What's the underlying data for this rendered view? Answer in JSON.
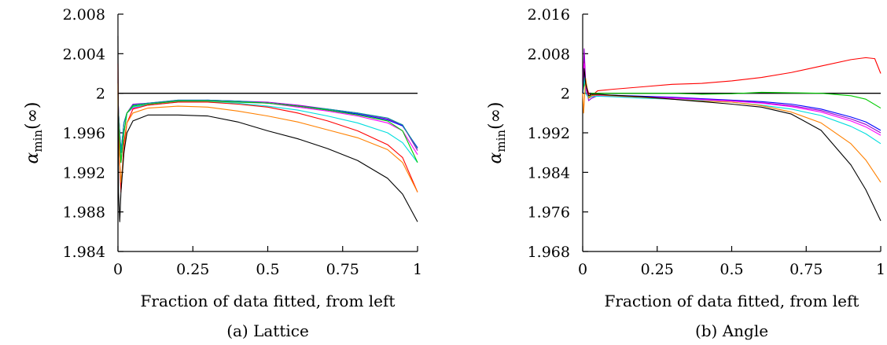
{
  "chart_data": [
    {
      "type": "line",
      "caption": "(a) Lattice",
      "xlabel": "Fraction of data fitted, from left",
      "ylabel": "α_min(∞)",
      "ylabel_main": "α",
      "ylabel_sub": "min",
      "ylabel_suffix": "(∞)",
      "xlim": [
        0,
        1
      ],
      "ylim": [
        1.984,
        2.008
      ],
      "xticks": [
        0,
        0.25,
        0.5,
        0.75,
        1
      ],
      "xtick_labels": [
        "0",
        "0.25",
        "0.5",
        "0.75",
        "1"
      ],
      "yticks": [
        1.984,
        1.988,
        1.992,
        1.996,
        2.0,
        2.004,
        2.008
      ],
      "ytick_labels": [
        "1.984",
        "1.988",
        "1.992",
        "1.996",
        "2",
        "2.004",
        "2.008"
      ],
      "reference_line": 2.0,
      "series": [
        {
          "color": "#0000ff",
          "x": [
            0,
            0.002,
            0.01,
            0.02,
            0.03,
            0.05,
            0.1,
            0.2,
            0.3,
            0.4,
            0.5,
            0.6,
            0.7,
            0.8,
            0.9,
            0.95,
            1.0
          ],
          "y": [
            2.0,
            1.998,
            1.994,
            1.997,
            1.998,
            1.9988,
            1.999,
            1.9992,
            1.9993,
            1.9992,
            1.999,
            1.9987,
            1.9983,
            1.9979,
            1.9973,
            1.9967,
            1.9945
          ]
        },
        {
          "color": "#9900cc",
          "x": [
            0,
            0.002,
            0.01,
            0.02,
            0.03,
            0.05,
            0.1,
            0.2,
            0.3,
            0.4,
            0.5,
            0.6,
            0.7,
            0.8,
            0.9,
            0.95,
            1.0
          ],
          "y": [
            2.0,
            1.998,
            1.994,
            1.997,
            1.998,
            1.9989,
            1.999,
            1.9993,
            1.9993,
            1.9992,
            1.9991,
            1.9988,
            1.9984,
            1.998,
            1.9974,
            1.9968,
            1.9942
          ]
        },
        {
          "color": "#ff00ff",
          "x": [
            0,
            0.002,
            0.01,
            0.02,
            0.03,
            0.05,
            0.1,
            0.2,
            0.3,
            0.4,
            0.5,
            0.6,
            0.7,
            0.8,
            0.9,
            0.95,
            1.0
          ],
          "y": [
            2.0,
            1.997,
            1.993,
            1.996,
            1.998,
            1.9985,
            1.9989,
            1.9992,
            1.9992,
            1.9991,
            1.999,
            1.9986,
            1.9982,
            1.9977,
            1.997,
            1.9962,
            1.9938
          ]
        },
        {
          "color": "#009999",
          "x": [
            0,
            0.002,
            0.01,
            0.02,
            0.03,
            0.05,
            0.1,
            0.2,
            0.3,
            0.4,
            0.5,
            0.6,
            0.7,
            0.8,
            0.9,
            0.95,
            1.0
          ],
          "y": [
            2.0,
            1.998,
            1.994,
            1.997,
            1.998,
            1.9988,
            1.999,
            1.9993,
            1.9993,
            1.9992,
            1.999,
            1.9987,
            1.9984,
            1.998,
            1.9975,
            1.9968,
            1.9944
          ]
        },
        {
          "color": "#00dddd",
          "x": [
            0,
            0.002,
            0.01,
            0.02,
            0.03,
            0.05,
            0.1,
            0.2,
            0.3,
            0.4,
            0.5,
            0.6,
            0.7,
            0.8,
            0.9,
            0.95,
            1.0
          ],
          "y": [
            2.0,
            1.997,
            1.993,
            1.996,
            1.998,
            1.9986,
            1.9988,
            1.9991,
            1.9991,
            1.999,
            1.9987,
            1.9983,
            1.9977,
            1.997,
            1.996,
            1.995,
            1.993
          ]
        },
        {
          "color": "#00cc00",
          "x": [
            0,
            0.002,
            0.01,
            0.02,
            0.03,
            0.05,
            0.1,
            0.2,
            0.3,
            0.4,
            0.5,
            0.6,
            0.7,
            0.8,
            0.9,
            0.95,
            1.0
          ],
          "y": [
            2.0,
            1.997,
            1.993,
            1.996,
            1.998,
            1.9987,
            1.9989,
            1.9992,
            1.9992,
            1.9991,
            1.999,
            1.9987,
            1.9983,
            1.9978,
            1.9972,
            1.9962,
            1.993
          ]
        },
        {
          "color": "#ff0000",
          "x": [
            0,
            0.002,
            0.01,
            0.02,
            0.03,
            0.05,
            0.1,
            0.2,
            0.3,
            0.4,
            0.5,
            0.6,
            0.7,
            0.8,
            0.9,
            0.95,
            1.0
          ],
          "y": [
            2.003,
            1.996,
            1.99,
            1.995,
            1.997,
            1.9984,
            1.9988,
            1.9991,
            1.9991,
            1.9989,
            1.9986,
            1.998,
            1.9972,
            1.9962,
            1.9948,
            1.9935,
            1.99
          ]
        },
        {
          "color": "#ff8000",
          "x": [
            0,
            0.002,
            0.01,
            0.02,
            0.03,
            0.05,
            0.1,
            0.2,
            0.3,
            0.4,
            0.5,
            0.6,
            0.7,
            0.8,
            0.9,
            0.95,
            1.0
          ],
          "y": [
            2.001,
            1.995,
            1.991,
            1.994,
            1.997,
            1.998,
            1.9985,
            1.9987,
            1.9986,
            1.9982,
            1.9977,
            1.9971,
            1.9963,
            1.9955,
            1.9943,
            1.993,
            1.99
          ]
        },
        {
          "color": "#000000",
          "x": [
            0,
            0.002,
            0.006,
            0.01,
            0.02,
            0.03,
            0.05,
            0.1,
            0.2,
            0.3,
            0.4,
            0.5,
            0.6,
            0.7,
            0.8,
            0.9,
            0.95,
            1.0
          ],
          "y": [
            2.0058,
            1.99,
            1.987,
            1.99,
            1.994,
            1.996,
            1.9972,
            1.9978,
            1.9978,
            1.9977,
            1.9971,
            1.9962,
            1.9954,
            1.9944,
            1.9932,
            1.9914,
            1.9898,
            1.987
          ]
        }
      ]
    },
    {
      "type": "line",
      "caption": "(b) Angle",
      "xlabel": "Fraction of data fitted, from left",
      "ylabel": "α_min(∞)",
      "ylabel_main": "α",
      "ylabel_sub": "min",
      "ylabel_suffix": "(∞)",
      "xlim": [
        0,
        1
      ],
      "ylim": [
        1.968,
        2.016
      ],
      "xticks": [
        0,
        0.25,
        0.5,
        0.75,
        1
      ],
      "xtick_labels": [
        "0",
        "0.25",
        "0.5",
        "0.75",
        "1"
      ],
      "yticks": [
        1.968,
        1.976,
        1.984,
        1.992,
        2.0,
        2.008,
        2.016
      ],
      "ytick_labels": [
        "1.968",
        "1.976",
        "1.984",
        "1.992",
        "2",
        "2.008",
        "2.016"
      ],
      "reference_line": 2.0,
      "series": [
        {
          "color": "#ff0000",
          "x": [
            0,
            0.005,
            0.01,
            0.02,
            0.03,
            0.05,
            0.1,
            0.2,
            0.3,
            0.4,
            0.5,
            0.6,
            0.7,
            0.8,
            0.9,
            0.95,
            0.98,
            1.0
          ],
          "y": [
            2.0,
            2.008,
            2.002,
            2.0,
            1.9995,
            2.0005,
            2.0008,
            2.0013,
            2.0018,
            2.002,
            2.0025,
            2.0032,
            2.0042,
            2.0055,
            2.0068,
            2.0072,
            2.007,
            2.004
          ]
        },
        {
          "color": "#00cc00",
          "x": [
            0,
            0.005,
            0.01,
            0.02,
            0.03,
            0.05,
            0.1,
            0.2,
            0.3,
            0.4,
            0.5,
            0.6,
            0.7,
            0.8,
            0.9,
            0.95,
            1.0
          ],
          "y": [
            2.0,
            2.002,
            2.001,
            1.999,
            2.0,
            2.0,
            2.0,
            2.0,
            2.0,
            1.9998,
            1.9999,
            2.0002,
            2.0001,
            2.0,
            1.9995,
            1.9988,
            1.997
          ]
        },
        {
          "color": "#0000ff",
          "x": [
            0,
            0.005,
            0.01,
            0.02,
            0.03,
            0.05,
            0.1,
            0.2,
            0.3,
            0.4,
            0.5,
            0.6,
            0.7,
            0.8,
            0.9,
            0.95,
            1.0
          ],
          "y": [
            2.0,
            2.005,
            2.001,
            1.999,
            1.9995,
            1.9997,
            1.9996,
            1.9994,
            1.9992,
            1.9989,
            1.9986,
            1.9983,
            1.9978,
            1.9968,
            1.9952,
            1.9942,
            1.9925
          ]
        },
        {
          "color": "#9900cc",
          "x": [
            0,
            0.005,
            0.01,
            0.02,
            0.03,
            0.05,
            0.1,
            0.2,
            0.3,
            0.4,
            0.5,
            0.6,
            0.7,
            0.8,
            0.9,
            0.95,
            1.0
          ],
          "y": [
            2.0,
            2.009,
            2.002,
            1.9985,
            1.999,
            1.9995,
            1.9994,
            1.9993,
            1.9991,
            1.9988,
            1.9985,
            1.9981,
            1.9975,
            1.9965,
            1.9948,
            1.9937,
            1.992
          ]
        },
        {
          "color": "#ff00ff",
          "x": [
            0,
            0.005,
            0.01,
            0.02,
            0.03,
            0.05,
            0.1,
            0.2,
            0.3,
            0.4,
            0.5,
            0.6,
            0.7,
            0.8,
            0.9,
            0.95,
            1.0
          ],
          "y": [
            2.0,
            2.006,
            2.001,
            1.999,
            1.9993,
            1.9995,
            1.9994,
            1.9992,
            1.999,
            1.9987,
            1.9984,
            1.998,
            1.9973,
            1.9962,
            1.9944,
            1.9932,
            1.9915
          ]
        },
        {
          "color": "#00dddd",
          "x": [
            0,
            0.005,
            0.01,
            0.02,
            0.03,
            0.05,
            0.1,
            0.2,
            0.3,
            0.4,
            0.5,
            0.6,
            0.7,
            0.8,
            0.9,
            0.95,
            1.0
          ],
          "y": [
            2.0,
            2.003,
            2.0,
            1.999,
            1.9993,
            1.9994,
            1.9993,
            1.999,
            1.9988,
            1.9985,
            1.9982,
            1.9976,
            1.9968,
            1.9955,
            1.9933,
            1.9918,
            1.9898
          ]
        },
        {
          "color": "#ff8000",
          "x": [
            0,
            0.003,
            0.01,
            0.02,
            0.03,
            0.05,
            0.1,
            0.2,
            0.3,
            0.4,
            0.5,
            0.6,
            0.7,
            0.8,
            0.9,
            0.95,
            1.0
          ],
          "y": [
            2.0,
            1.996,
            2.003,
            1.999,
            1.9995,
            1.9997,
            1.9995,
            1.9992,
            1.9988,
            1.9984,
            1.9982,
            1.9975,
            1.9962,
            1.994,
            1.9898,
            1.9865,
            1.982
          ]
        },
        {
          "color": "#000000",
          "x": [
            0,
            0.005,
            0.01,
            0.02,
            0.03,
            0.05,
            0.1,
            0.2,
            0.3,
            0.4,
            0.5,
            0.6,
            0.7,
            0.8,
            0.9,
            0.95,
            1.0
          ],
          "y": [
            2.0,
            2.005,
            2.002,
            1.9995,
            1.9998,
            1.9998,
            1.9996,
            1.9993,
            1.9988,
            1.9983,
            1.9978,
            1.9972,
            1.9958,
            1.9925,
            1.9855,
            1.9805,
            1.9742
          ]
        }
      ]
    }
  ]
}
